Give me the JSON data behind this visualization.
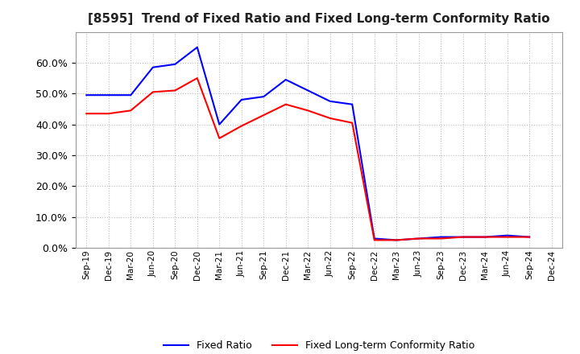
{
  "title": "[8595]  Trend of Fixed Ratio and Fixed Long-term Conformity Ratio",
  "x_labels": [
    "Sep-19",
    "Dec-19",
    "Mar-20",
    "Jun-20",
    "Sep-20",
    "Dec-20",
    "Mar-21",
    "Jun-21",
    "Sep-21",
    "Dec-21",
    "Mar-22",
    "Jun-22",
    "Sep-22",
    "Dec-22",
    "Mar-23",
    "Jun-23",
    "Sep-23",
    "Dec-23",
    "Mar-24",
    "Jun-24",
    "Sep-24",
    "Dec-24"
  ],
  "fixed_ratio": [
    49.5,
    49.5,
    49.5,
    58.5,
    59.5,
    65.0,
    40.0,
    48.0,
    49.0,
    54.5,
    51.0,
    47.5,
    46.5,
    3.0,
    2.5,
    3.0,
    3.5,
    3.5,
    3.5,
    4.0,
    3.5,
    null
  ],
  "fixed_lt_ratio": [
    43.5,
    43.5,
    44.5,
    50.5,
    51.0,
    55.0,
    35.5,
    39.5,
    43.0,
    46.5,
    44.5,
    42.0,
    40.5,
    2.5,
    2.5,
    3.0,
    3.0,
    3.5,
    3.5,
    3.5,
    3.5,
    null
  ],
  "ylim": [
    0,
    70
  ],
  "yticks": [
    0,
    10,
    20,
    30,
    40,
    50,
    60
  ],
  "line_color_fixed": "#0000FF",
  "line_color_lt": "#FF0000",
  "background_color": "#FFFFFF",
  "grid_color": "#AAAAAA",
  "legend_fixed": "Fixed Ratio",
  "legend_lt": "Fixed Long-term Conformity Ratio"
}
